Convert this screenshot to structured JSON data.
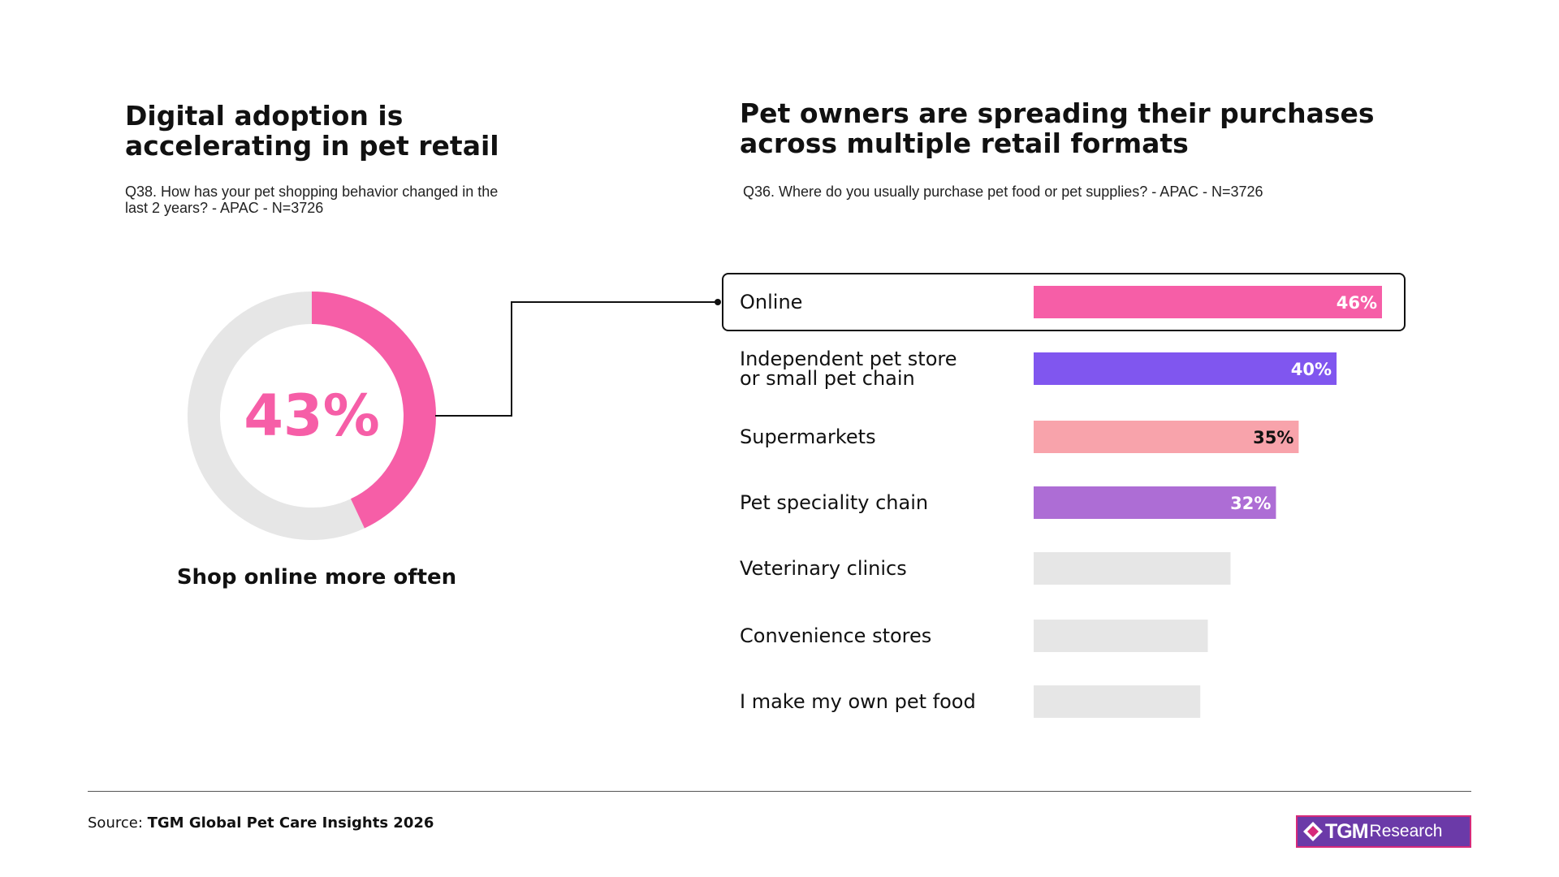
{
  "left": {
    "title": "Digital adoption is accelerating in pet retail",
    "subtitle": "Q38. How has your pet shopping behavior changed in the last 2 years? - APAC - N=3726",
    "donut_label": "Shop online more often"
  },
  "right": {
    "title": "Pet owners are spreading their purchases across multiple retail formats",
    "subtitle": "Q36. Where do you usually purchase pet food or pet supplies? - APAC - N=3726",
    "highlighted_category": "Online"
  },
  "footer": {
    "source_prefix": "Source:",
    "source_name": "TGM Global Pet Care Insights 2026",
    "logo_tgm": "TGM",
    "logo_research": "Research"
  },
  "colors": {
    "pink": "#f65ea7",
    "purple": "#8056ef",
    "light_pink": "#f8a3ab",
    "violet": "#ad6dd5",
    "grey": "#e6e6e6"
  },
  "chart_data": [
    {
      "type": "donut",
      "value": 43,
      "value_label": "43%",
      "label": "Shop online more often",
      "colors": {
        "value": "#f65ea7",
        "rest": "#e6e6e6"
      }
    },
    {
      "type": "bar",
      "orientation": "horizontal",
      "categories": [
        "Online",
        "Independent pet store\nor small pet chain",
        "Supermarkets",
        "Pet speciality chain",
        "Veterinary clinics",
        "Convenience stores",
        "I make my own pet food"
      ],
      "values": [
        46,
        40,
        35,
        32,
        26,
        23,
        22
      ],
      "data_labels": [
        "46%",
        "40%",
        "35%",
        "32%",
        "",
        "",
        ""
      ],
      "colors": [
        "#f65ea7",
        "#8056ef",
        "#f8a3ab",
        "#ad6dd5",
        "#e6e6e6",
        "#e6e6e6",
        "#e6e6e6"
      ],
      "label_colors": [
        "#ffffff",
        "#ffffff",
        "#111111",
        "#ffffff",
        "#111111",
        "#111111",
        "#111111"
      ],
      "xlim": [
        0,
        46
      ]
    }
  ]
}
